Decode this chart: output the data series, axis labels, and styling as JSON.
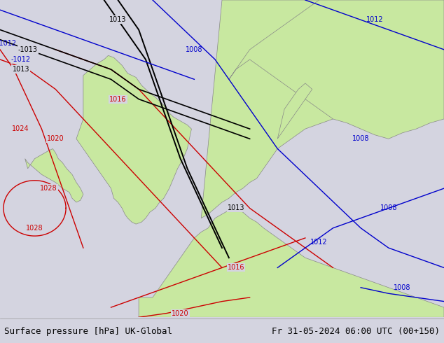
{
  "title_left": "Surface pressure [hPa] UK-Global",
  "title_right": "Fr 31-05-2024 06:00 UTC (00+150)",
  "bg_color": "#d4d4e0",
  "land_color": "#c8e8a0",
  "border_color": "#888888",
  "font_size_title": 9,
  "map_xlim": [
    -12,
    20
  ],
  "map_ylim": [
    46,
    62
  ]
}
